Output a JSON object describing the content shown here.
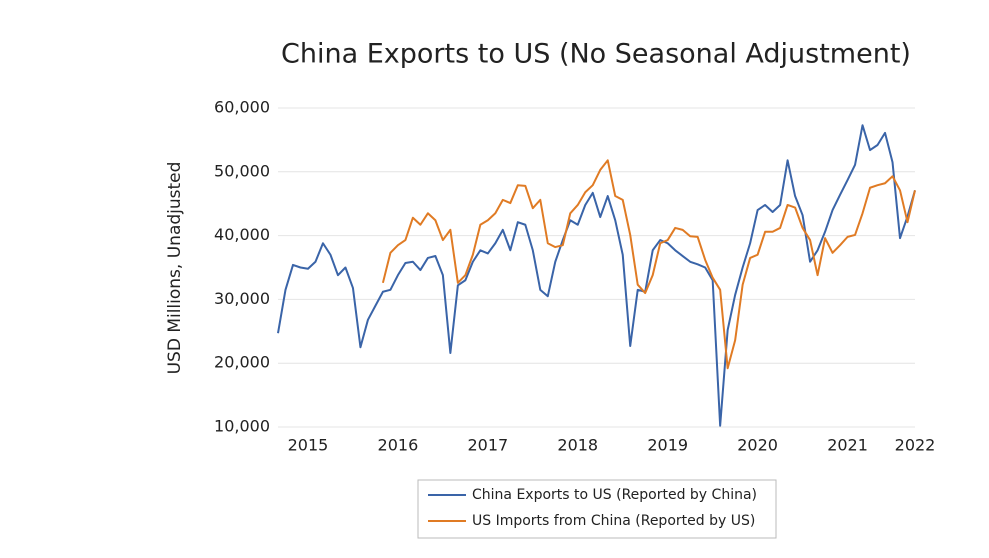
{
  "chart_data": {
    "type": "line",
    "title": "China Exports to US (No Seasonal Adjustment)",
    "y_label": "USD Millions, Unadjusted",
    "categories": [
      null,
      null,
      null,
      null,
      "2015",
      null,
      null,
      null,
      null,
      null,
      null,
      null,
      null,
      null,
      null,
      null,
      "2016",
      null,
      null,
      null,
      null,
      null,
      null,
      null,
      null,
      null,
      null,
      null,
      "2017",
      null,
      null,
      null,
      null,
      null,
      null,
      null,
      null,
      null,
      null,
      null,
      "2018",
      null,
      null,
      null,
      null,
      null,
      null,
      null,
      null,
      null,
      null,
      null,
      "2019",
      null,
      null,
      null,
      null,
      null,
      null,
      null,
      null,
      null,
      null,
      null,
      "2020",
      null,
      null,
      null,
      null,
      null,
      null,
      null,
      null,
      null,
      null,
      null,
      "2021",
      null,
      null,
      null,
      null,
      null,
      null,
      null,
      null,
      "2022"
    ],
    "series": [
      {
        "name": "China Exports to US (Reported by China)",
        "color": "#3a64a8",
        "values": [
          24700,
          31500,
          35400,
          35000,
          34800,
          35900,
          38800,
          37000,
          33800,
          35000,
          31800,
          22500,
          26800,
          29000,
          31200,
          31500,
          33800,
          35700,
          35900,
          34600,
          36500,
          36800,
          33800,
          21600,
          32200,
          33000,
          35900,
          37700,
          37200,
          38800,
          40900,
          37700,
          42100,
          41700,
          37700,
          31500,
          30500,
          35900,
          39300,
          42400,
          41700,
          44800,
          46700,
          42900,
          46200,
          42400,
          37000,
          22700,
          31500,
          31200,
          37700,
          39300,
          38800,
          37700,
          36800,
          35900,
          35500,
          35000,
          33000,
          10200,
          25200,
          30700,
          35000,
          38800,
          44000,
          44800,
          43700,
          44800,
          51800,
          46200,
          43200,
          35900,
          37700,
          40600,
          44000,
          46400,
          48700,
          51100,
          57300,
          53400,
          54200,
          56100,
          51500,
          39600,
          43000,
          47100
        ]
      },
      {
        "name": "US Imports from China (Reported by US)",
        "color": "#e07b24",
        "values": [
          null,
          null,
          null,
          null,
          null,
          null,
          null,
          null,
          null,
          null,
          null,
          null,
          null,
          null,
          32600,
          37300,
          38500,
          39300,
          42800,
          41700,
          43500,
          42400,
          39300,
          40900,
          32600,
          33800,
          37000,
          41700,
          42400,
          43500,
          45600,
          45100,
          47900,
          47800,
          44300,
          45600,
          38800,
          38200,
          38500,
          43500,
          44800,
          46800,
          47900,
          50300,
          51800,
          46200,
          45600,
          40100,
          32300,
          31000,
          33800,
          38800,
          39300,
          41200,
          40900,
          39900,
          39800,
          36200,
          33400,
          31500,
          19200,
          23600,
          32300,
          36500,
          37000,
          40600,
          40600,
          41200,
          44800,
          44400,
          41200,
          39300,
          33800,
          39600,
          37300,
          38500,
          39800,
          40100,
          43500,
          47500,
          47900,
          48200,
          49300,
          47100,
          42100,
          47100
        ]
      }
    ],
    "ylim": [
      10000,
      60000
    ],
    "yticks": [
      {
        "value": 10000,
        "label": "10,000"
      },
      {
        "value": 20000,
        "label": "20,000"
      },
      {
        "value": 30000,
        "label": "30,000"
      },
      {
        "value": 40000,
        "label": "40,000"
      },
      {
        "value": 50000,
        "label": "50,000"
      },
      {
        "value": 60000,
        "label": "60,000"
      }
    ],
    "grid": true,
    "legend": "bottom"
  }
}
